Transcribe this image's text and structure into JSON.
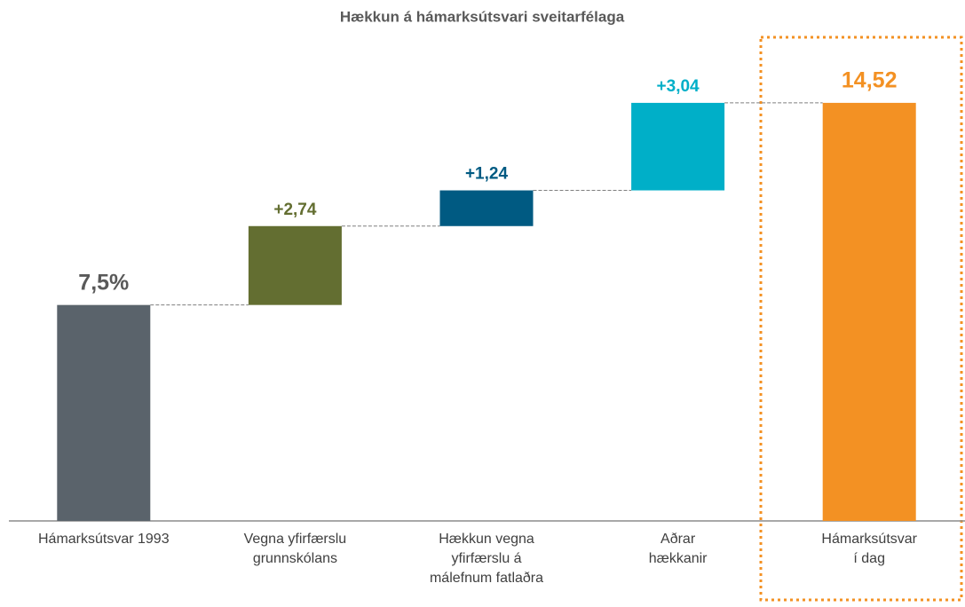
{
  "chart_data": {
    "type": "waterfall",
    "title": "Hækkun á hámarksútsvari sveitarfélaga",
    "categories": [
      [
        "Hámarksútsvar 1993"
      ],
      [
        "Vegna yfirfærslu",
        "grunnskólans"
      ],
      [
        "Hækkun vegna",
        "yfirfærslu á",
        "málefnum fatlaðra"
      ],
      [
        "Aðrar",
        "hækkanir"
      ],
      [
        "Hámarksútsvar",
        "í dag"
      ]
    ],
    "values": [
      7.5,
      2.74,
      1.24,
      3.04,
      14.52
    ],
    "value_labels": [
      "7,5%",
      "+2,74",
      "+1,24",
      "+3,04",
      "14,52"
    ],
    "measure": [
      "absolute",
      "relative",
      "relative",
      "relative",
      "total"
    ],
    "colors": [
      "#5a636b",
      "#636e31",
      "#005a82",
      "#00afc8",
      "#f39123"
    ],
    "label_colors": [
      "#595959",
      "#636e31",
      "#005a82",
      "#00afc8",
      "#f39123"
    ],
    "ylim": [
      0,
      18
    ]
  }
}
